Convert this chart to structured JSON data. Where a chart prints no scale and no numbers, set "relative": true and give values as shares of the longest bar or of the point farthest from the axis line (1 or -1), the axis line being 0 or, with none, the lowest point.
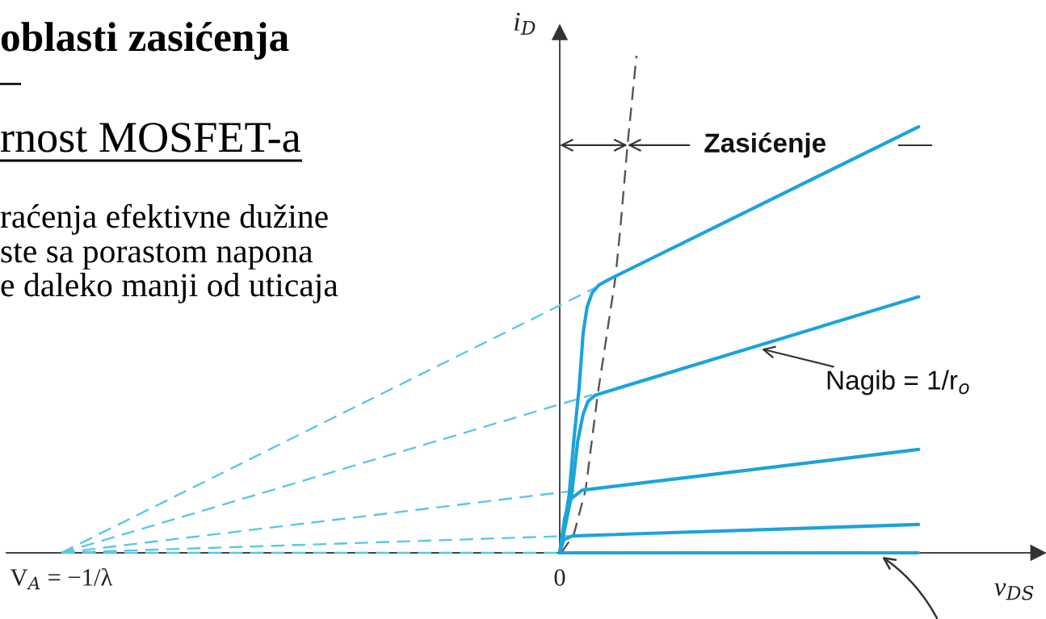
{
  "chart_data": {
    "type": "line",
    "title": "oblasti zasićenja",
    "subtitle": "rnost MOSFET-a",
    "xlabel": "v$_{DS}$",
    "ylabel": "i$_{D}$",
    "relative": true,
    "xlim": [
      -1.11,
      0.96
    ],
    "xticks": [
      {
        "value": -1,
        "label": "V$_{A}$ = −1/λ"
      },
      {
        "value": 0,
        "label": "0"
      }
    ],
    "series": [
      {
        "color": "#1ca3dc",
        "line_style": "solid",
        "x": [
          0,
          0.019,
          0.028,
          0.039,
          0.047,
          0.055,
          0.065,
          0.079,
          0.097,
          0.72
        ],
        "values": [
          0,
          0.117,
          0.224,
          0.333,
          0.442,
          0.495,
          0.523,
          0.539,
          0.549,
          0.857
        ]
      },
      {
        "color": "#1ca3dc",
        "line_style": "solid",
        "x": [
          0,
          0.024,
          0.036,
          0.047,
          0.057,
          0.071,
          0.72
        ],
        "values": [
          0,
          0.117,
          0.224,
          0.279,
          0.305,
          0.317,
          0.515
        ]
      },
      {
        "color": "#1ca3dc",
        "line_style": "solid",
        "x": [
          0,
          0.01,
          0.022,
          0.045,
          0.72
        ],
        "values": [
          0,
          0.07,
          0.108,
          0.126,
          0.208
        ]
      },
      {
        "color": "#1ca3dc",
        "line_style": "solid",
        "x": [
          0,
          0.008,
          0.025,
          0.72
        ],
        "values": [
          0,
          0.026,
          0.034,
          0.057
        ]
      },
      {
        "color": "#1ca3dc",
        "line_style": "solid",
        "x": [
          0,
          0.72
        ],
        "values": [
          0,
          0
        ]
      },
      {
        "color": "#5cc6e4",
        "line_style": "dashed",
        "x": [
          -1,
          0.085
        ],
        "values": [
          0,
          0.54
        ]
      },
      {
        "color": "#5cc6e4",
        "line_style": "dashed",
        "x": [
          -1,
          0.065
        ],
        "values": [
          0,
          0.318
        ]
      },
      {
        "color": "#5cc6e4",
        "line_style": "dashed",
        "x": [
          -1,
          0.04
        ],
        "values": [
          0,
          0.126
        ]
      },
      {
        "color": "#5cc6e4",
        "line_style": "dashed",
        "x": [
          -1,
          0.02
        ],
        "values": [
          0,
          0.034
        ]
      },
      {
        "color": "#5cc6e4",
        "line_style": "dashed",
        "x": [
          -1,
          0
        ],
        "values": [
          0,
          0
        ]
      },
      {
        "color": "#555555",
        "line_style": "dashed",
        "x": [
          0.003,
          0.028,
          0.052,
          0.076,
          0.112,
          0.122,
          0.136,
          0.154
        ],
        "values": [
          0,
          0.036,
          0.127,
          0.317,
          0.555,
          0.657,
          0.82,
          1.0
        ]
      }
    ],
    "annotations": [
      "–",
      "raćenja efektivne dužine",
      "ste sa porastom napona",
      "e daleko manji od uticaja",
      {
        "text": "Zasićenje",
        "x": 0.136,
        "y": 0.82
      },
      {
        "text": "Nagib = 1/r$_{o}$",
        "x": 0.405,
        "y": 0.41
      }
    ]
  }
}
